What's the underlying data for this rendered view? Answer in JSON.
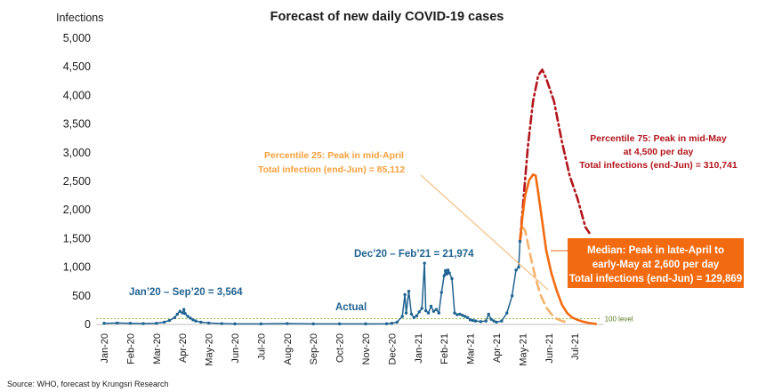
{
  "chart_data": {
    "type": "line",
    "title": "Forecast of new daily COVID-19 cases",
    "ylabel": "Infections",
    "ylim": [
      0,
      5000
    ],
    "y_ticks": [
      "0",
      "500",
      "1,000",
      "1,500",
      "2,000",
      "2,500",
      "3,000",
      "3,500",
      "4,000",
      "4,500",
      "5,000"
    ],
    "x_ticks": [
      "Jan-20",
      "Feb-20",
      "Mar-20",
      "Apr-20",
      "May-20",
      "Jun-20",
      "Jul-20",
      "Aug-20",
      "Sep-20",
      "Oct-20",
      "Nov-20",
      "Dec-20",
      "Jan-21",
      "Feb-21",
      "Mar-21",
      "Apr-21",
      "May-21",
      "Jun-21",
      "Jul-21"
    ],
    "grid": false,
    "reference_line": {
      "label": "100 level",
      "value": 100,
      "color": "#8db33a"
    },
    "series": [
      {
        "name": "Actual",
        "color": "#1f6391",
        "style": "solid-markers",
        "points": [
          [
            0,
            20
          ],
          [
            0.5,
            25
          ],
          [
            1,
            20
          ],
          [
            1.5,
            15
          ],
          [
            2,
            20
          ],
          [
            2.3,
            40
          ],
          [
            2.5,
            70
          ],
          [
            2.7,
            120
          ],
          [
            2.8,
            180
          ],
          [
            2.9,
            230
          ],
          [
            3.0,
            200
          ],
          [
            3.05,
            260
          ],
          [
            3.1,
            190
          ],
          [
            3.2,
            140
          ],
          [
            3.3,
            110
          ],
          [
            3.4,
            80
          ],
          [
            3.5,
            60
          ],
          [
            3.7,
            40
          ],
          [
            4,
            25
          ],
          [
            4.5,
            15
          ],
          [
            5,
            10
          ],
          [
            6,
            10
          ],
          [
            7,
            15
          ],
          [
            8,
            10
          ],
          [
            9,
            10
          ],
          [
            10,
            10
          ],
          [
            10.8,
            12
          ],
          [
            11.0,
            20
          ],
          [
            11.2,
            40
          ],
          [
            11.4,
            140
          ],
          [
            11.5,
            520
          ],
          [
            11.55,
            200
          ],
          [
            11.65,
            580
          ],
          [
            11.75,
            180
          ],
          [
            11.85,
            120
          ],
          [
            11.95,
            150
          ],
          [
            12.05,
            220
          ],
          [
            12.15,
            280
          ],
          [
            12.25,
            1070
          ],
          [
            12.3,
            240
          ],
          [
            12.4,
            200
          ],
          [
            12.5,
            320
          ],
          [
            12.6,
            230
          ],
          [
            12.7,
            260
          ],
          [
            12.8,
            200
          ],
          [
            12.9,
            560
          ],
          [
            13.0,
            850
          ],
          [
            13.05,
            940
          ],
          [
            13.1,
            880
          ],
          [
            13.15,
            950
          ],
          [
            13.2,
            900
          ],
          [
            13.3,
            800
          ],
          [
            13.4,
            200
          ],
          [
            13.5,
            170
          ],
          [
            13.6,
            180
          ],
          [
            13.7,
            160
          ],
          [
            13.8,
            140
          ],
          [
            13.9,
            120
          ],
          [
            14.0,
            80
          ],
          [
            14.1,
            70
          ],
          [
            14.2,
            60
          ],
          [
            14.4,
            50
          ],
          [
            14.6,
            60
          ],
          [
            14.7,
            180
          ],
          [
            14.8,
            90
          ],
          [
            14.9,
            60
          ],
          [
            15.0,
            40
          ],
          [
            15.2,
            60
          ],
          [
            15.4,
            200
          ],
          [
            15.6,
            500
          ],
          [
            15.75,
            950
          ],
          [
            15.85,
            1000
          ],
          [
            15.9,
            1450
          ]
        ]
      },
      {
        "name": "Percentile 25",
        "color": "#f5b26b",
        "style": "dashed",
        "points": [
          [
            15.9,
            1450
          ],
          [
            16.0,
            1700
          ],
          [
            16.1,
            1640
          ],
          [
            16.3,
            1200
          ],
          [
            16.5,
            800
          ],
          [
            16.7,
            500
          ],
          [
            16.9,
            300
          ],
          [
            17.1,
            180
          ],
          [
            17.3,
            100
          ],
          [
            17.5,
            60
          ],
          [
            17.7,
            40
          ]
        ]
      },
      {
        "name": "Median",
        "color": "#f26b11",
        "style": "solid",
        "points": [
          [
            15.9,
            1450
          ],
          [
            16.0,
            1900
          ],
          [
            16.1,
            2250
          ],
          [
            16.25,
            2520
          ],
          [
            16.4,
            2620
          ],
          [
            16.5,
            2600
          ],
          [
            16.6,
            2300
          ],
          [
            16.75,
            1800
          ],
          [
            16.9,
            1300
          ],
          [
            17.1,
            900
          ],
          [
            17.3,
            600
          ],
          [
            17.5,
            350
          ],
          [
            17.7,
            200
          ],
          [
            17.9,
            120
          ],
          [
            18.1,
            80
          ],
          [
            18.3,
            50
          ],
          [
            18.5,
            30
          ],
          [
            18.7,
            15
          ],
          [
            18.8,
            10
          ]
        ]
      },
      {
        "name": "Percentile 75",
        "color": "#b2151b",
        "style": "dash-dot",
        "points": [
          [
            15.9,
            1450
          ],
          [
            16.0,
            2000
          ],
          [
            16.2,
            3100
          ],
          [
            16.4,
            3900
          ],
          [
            16.6,
            4350
          ],
          [
            16.75,
            4450
          ],
          [
            16.9,
            4300
          ],
          [
            17.2,
            3900
          ],
          [
            17.5,
            3200
          ],
          [
            17.8,
            2600
          ],
          [
            18.1,
            2200
          ],
          [
            18.4,
            1700
          ],
          [
            18.55,
            1600
          ]
        ]
      }
    ],
    "annotations": {
      "actual_label": "Actual",
      "jan_sep": "Jan’20 – Sep’20 = 3,564",
      "dec_feb": "Dec’20 – Feb’21 = 21,974",
      "p25_line1": "Percentile 25: Peak in mid-April",
      "p25_line2": "Total infection (end-Jun) = 85,112",
      "p75_line1": "Percentile 75: Peak in mid-May",
      "p75_line2": "at 4,500 per day",
      "p75_line3": "Total infections (end-Jun) = 310,741",
      "median_line1": "Median: Peak in late-April to",
      "median_line2": "early-May at 2,600 per day",
      "median_line3": "Total infections (end-Jun) = 129,869"
    },
    "source": "Source: WHO, forecast by Krungsri Research"
  }
}
